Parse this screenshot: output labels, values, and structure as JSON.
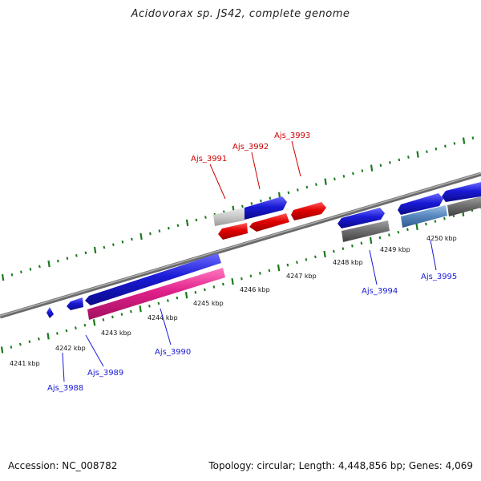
{
  "title": "Acidovorax sp. JS42, complete genome",
  "footer": {
    "accession": "Accession: NC_008782",
    "topology": "Topology: circular; Length: 4,448,856 bp; Genes: 4,069"
  },
  "colors": {
    "forward_gene": "#1a1ad6",
    "reverse_gene": "#e00000",
    "rna_gene": "#e0208a",
    "grey_gene": "#707070",
    "light_grey_gene": "#c8c8c8",
    "steel_gene": "#5a8ac0",
    "forward_label": "#1a1ad6",
    "reverse_label": "#d00000",
    "backbone": "#8a8a8a",
    "tick": "#1a7a1a"
  },
  "ticks": [
    "4241 kbp",
    "4242 kbp",
    "4243 kbp",
    "4244 kbp",
    "4245 kbp",
    "4246 kbp",
    "4247 kbp",
    "4248 kbp",
    "4249 kbp",
    "4250 kbp"
  ],
  "gene_labels": {
    "forward": [
      "Ajs_3988",
      "Ajs_3989",
      "Ajs_3990",
      "Ajs_3994",
      "Ajs_3995"
    ],
    "reverse": [
      "Ajs_3991",
      "Ajs_3992",
      "Ajs_3993"
    ]
  }
}
